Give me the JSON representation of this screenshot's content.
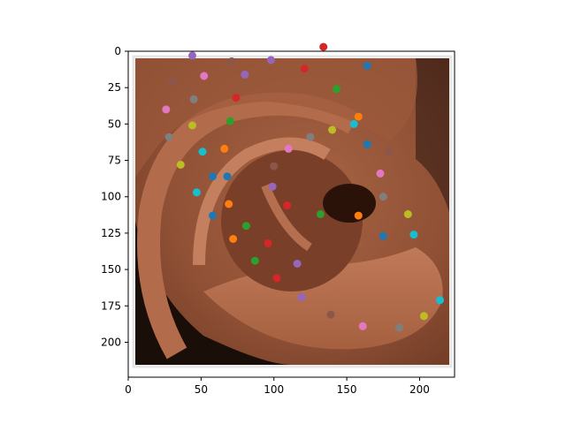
{
  "chart_data": {
    "type": "scatter",
    "title": "",
    "xlabel": "",
    "ylabel": "",
    "xlim": [
      0,
      224
    ],
    "ylim": [
      224,
      0
    ],
    "image_extent": [
      5,
      219,
      5,
      215
    ],
    "background_image": "ear-closeup-photo",
    "x_ticks": [
      0,
      50,
      100,
      150,
      200
    ],
    "y_ticks": [
      0,
      25,
      50,
      75,
      100,
      125,
      150,
      175,
      200
    ],
    "grid": false,
    "legend": "none",
    "points": [
      {
        "x": 44,
        "y": 3,
        "color": "#9467bd"
      },
      {
        "x": 71,
        "y": 7,
        "color": "#8c564b"
      },
      {
        "x": 98,
        "y": 6,
        "color": "#9467bd"
      },
      {
        "x": 134,
        "y": -3,
        "color": "#d62728"
      },
      {
        "x": 121,
        "y": 12,
        "color": "#d62728"
      },
      {
        "x": 164,
        "y": 10,
        "color": "#1f77b4"
      },
      {
        "x": 30,
        "y": 21,
        "color": "#8c564b"
      },
      {
        "x": 52,
        "y": 17,
        "color": "#e377c2"
      },
      {
        "x": 80,
        "y": 16,
        "color": "#9467bd"
      },
      {
        "x": 143,
        "y": 26,
        "color": "#2ca02c"
      },
      {
        "x": 45,
        "y": 33,
        "color": "#7f7f7f"
      },
      {
        "x": 74,
        "y": 32,
        "color": "#d62728"
      },
      {
        "x": 26,
        "y": 40,
        "color": "#e377c2"
      },
      {
        "x": 158,
        "y": 45,
        "color": "#ff7f0e"
      },
      {
        "x": 70,
        "y": 48,
        "color": "#2ca02c"
      },
      {
        "x": 155,
        "y": 50,
        "color": "#17becf"
      },
      {
        "x": 44,
        "y": 51,
        "color": "#bcbd22"
      },
      {
        "x": 140,
        "y": 54,
        "color": "#bcbd22"
      },
      {
        "x": 28,
        "y": 59,
        "color": "#7f7f7f"
      },
      {
        "x": 125,
        "y": 59,
        "color": "#7f7f7f"
      },
      {
        "x": 164,
        "y": 64,
        "color": "#1f77b4"
      },
      {
        "x": 66,
        "y": 67,
        "color": "#ff7f0e"
      },
      {
        "x": 110,
        "y": 67,
        "color": "#e377c2"
      },
      {
        "x": 51,
        "y": 69,
        "color": "#17becf"
      },
      {
        "x": 179,
        "y": 69,
        "color": "#8c564b"
      },
      {
        "x": 36,
        "y": 78,
        "color": "#bcbd22"
      },
      {
        "x": 100,
        "y": 79,
        "color": "#8c564b"
      },
      {
        "x": 58,
        "y": 86,
        "color": "#1f77b4"
      },
      {
        "x": 68,
        "y": 86,
        "color": "#1f77b4"
      },
      {
        "x": 173,
        "y": 84,
        "color": "#e377c2"
      },
      {
        "x": 99,
        "y": 93,
        "color": "#9467bd"
      },
      {
        "x": 47,
        "y": 97,
        "color": "#17becf"
      },
      {
        "x": 175,
        "y": 100,
        "color": "#7f7f7f"
      },
      {
        "x": 69,
        "y": 105,
        "color": "#ff7f0e"
      },
      {
        "x": 109,
        "y": 106,
        "color": "#d62728"
      },
      {
        "x": 58,
        "y": 113,
        "color": "#1f77b4"
      },
      {
        "x": 132,
        "y": 112,
        "color": "#2ca02c"
      },
      {
        "x": 158,
        "y": 113,
        "color": "#ff7f0e"
      },
      {
        "x": 192,
        "y": 112,
        "color": "#bcbd22"
      },
      {
        "x": 81,
        "y": 120,
        "color": "#2ca02c"
      },
      {
        "x": 175,
        "y": 127,
        "color": "#1f77b4"
      },
      {
        "x": 196,
        "y": 126,
        "color": "#17becf"
      },
      {
        "x": 72,
        "y": 129,
        "color": "#ff7f0e"
      },
      {
        "x": 96,
        "y": 132,
        "color": "#d62728"
      },
      {
        "x": 87,
        "y": 144,
        "color": "#2ca02c"
      },
      {
        "x": 116,
        "y": 146,
        "color": "#9467bd"
      },
      {
        "x": 102,
        "y": 156,
        "color": "#d62728"
      },
      {
        "x": 119,
        "y": 169,
        "color": "#9467bd"
      },
      {
        "x": 214,
        "y": 171,
        "color": "#17becf"
      },
      {
        "x": 139,
        "y": 181,
        "color": "#8c564b"
      },
      {
        "x": 203,
        "y": 182,
        "color": "#bcbd22"
      },
      {
        "x": 161,
        "y": 189,
        "color": "#e377c2"
      },
      {
        "x": 186,
        "y": 190,
        "color": "#7f7f7f"
      }
    ]
  }
}
